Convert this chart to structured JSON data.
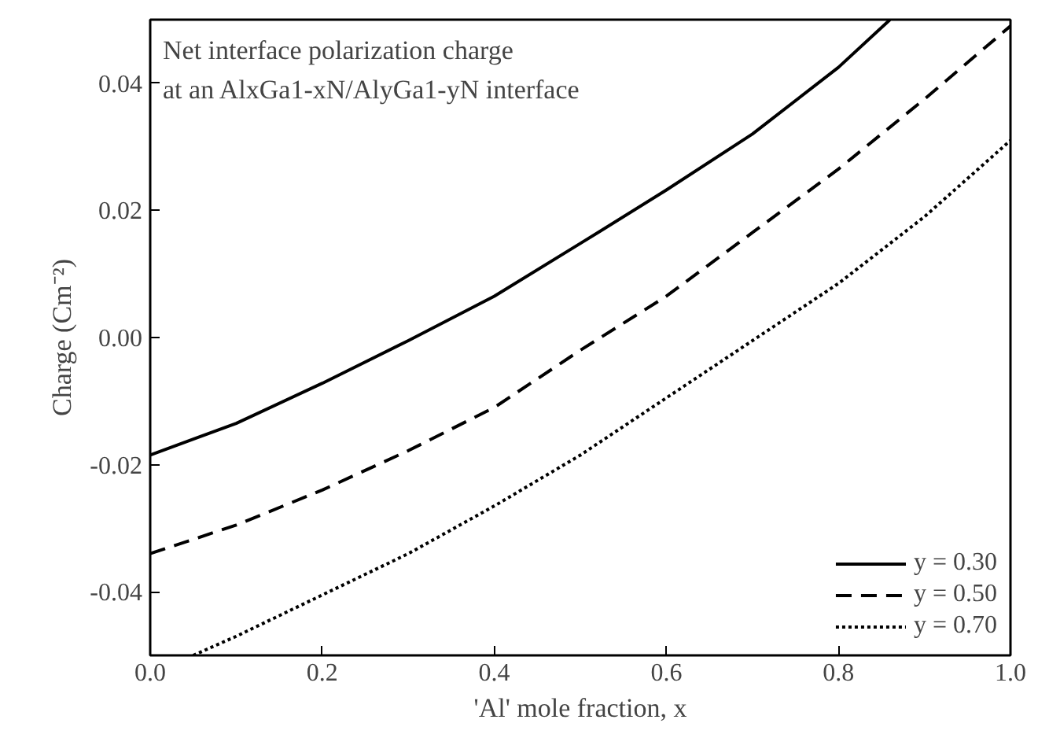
{
  "chart_data": {
    "type": "line",
    "xlabel": "'Al' mole fraction, x",
    "ylabel": "Charge (Cm⁻²)",
    "annotations": [
      "Net interface polarization charge",
      "at an AlxGa1-xN/AlyGa1-yN interface"
    ],
    "xlim": [
      0,
      1
    ],
    "ylim": [
      -0.05,
      0.05
    ],
    "xticks": [
      {
        "value": 0,
        "label": "0.0"
      },
      0.2,
      0.4,
      0.6,
      0.8,
      {
        "value": 1,
        "label": "1.0"
      }
    ],
    "yticks": [
      -0.04,
      -0.02,
      {
        "value": 0,
        "label": "0.00"
      },
      0.02,
      0.04
    ],
    "grid": false,
    "legend": "bottom right",
    "marker": "none",
    "series": [
      {
        "name": "y = 0.30",
        "color": "#000000",
        "line_style": "solid",
        "x": [
          0,
          0.1,
          0.2,
          0.3,
          0.4,
          0.5,
          0.6,
          0.7,
          0.8,
          0.86
        ],
        "values": [
          -0.0185,
          -0.0135,
          -0.0072,
          -0.0005,
          0.0065,
          0.0148,
          0.0232,
          0.032,
          0.0425,
          0.05
        ]
      },
      {
        "name": "y = 0.50",
        "color": "#000000",
        "line_style": "dashed",
        "x": [
          0,
          0.1,
          0.2,
          0.3,
          0.4,
          0.5,
          0.6,
          0.7,
          0.8,
          0.9,
          1.0
        ],
        "values": [
          -0.034,
          -0.0295,
          -0.024,
          -0.0178,
          -0.011,
          -0.002,
          0.0065,
          0.0165,
          0.0265,
          0.0375,
          0.049
        ]
      },
      {
        "name": "y = 0.70",
        "color": "#000000",
        "line_style": "dotted",
        "x": [
          0.05,
          0.1,
          0.2,
          0.3,
          0.4,
          0.5,
          0.6,
          0.7,
          0.8,
          0.9,
          1.0
        ],
        "values": [
          -0.05,
          -0.047,
          -0.0405,
          -0.034,
          -0.0265,
          -0.0185,
          -0.0095,
          -0.0005,
          0.0085,
          0.019,
          0.031
        ]
      }
    ]
  }
}
